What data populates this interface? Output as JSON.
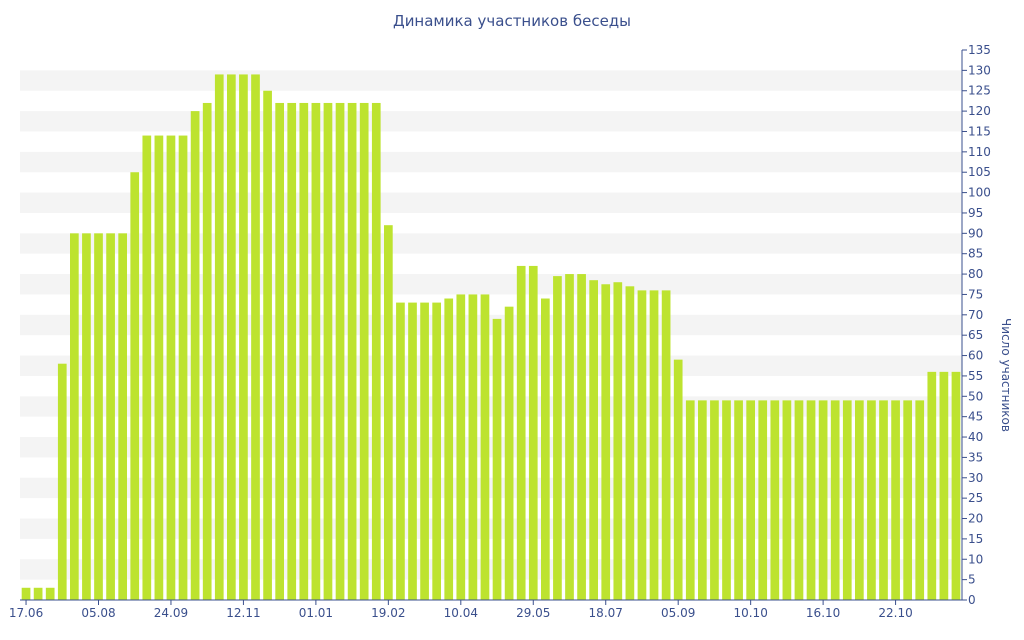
{
  "chart_data": {
    "type": "bar",
    "title": "Динамика участников беседы",
    "xlabel": "",
    "ylabel": "Число участников",
    "ylim": [
      0,
      135
    ],
    "y_ticks": [
      0,
      5,
      10,
      15,
      20,
      25,
      30,
      35,
      40,
      45,
      50,
      55,
      60,
      65,
      70,
      75,
      80,
      85,
      90,
      95,
      100,
      105,
      110,
      115,
      120,
      125,
      130,
      135
    ],
    "x_tick_labels": [
      "17.06",
      "05.08",
      "24.09",
      "12.11",
      "01.01",
      "19.02",
      "10.04",
      "29.05",
      "18.07",
      "05.09",
      "10.10",
      "16.10",
      "22.10"
    ],
    "x_tick_bar_index": [
      0,
      6,
      12,
      18,
      24,
      30,
      36,
      42,
      48,
      54,
      60,
      66,
      72
    ],
    "y_axis_position": "right",
    "grid": "alternating horizontal bands",
    "bar_color": "#bde32f",
    "values": [
      3,
      3,
      3,
      58,
      90,
      90,
      90,
      90,
      90,
      105,
      114,
      114,
      114,
      114,
      120,
      122,
      129,
      129,
      129,
      129,
      125,
      122,
      122,
      122,
      122,
      122,
      122,
      122,
      122,
      122,
      92,
      73,
      73,
      73,
      73,
      74,
      75,
      75,
      75,
      69,
      72,
      82,
      82,
      74,
      79.5,
      80,
      80,
      78.5,
      77.5,
      78,
      77,
      76,
      76,
      76,
      59,
      49,
      49,
      49,
      49,
      49,
      49,
      49,
      49,
      49,
      49,
      49,
      49,
      49,
      49,
      49,
      49,
      49,
      49,
      49,
      49,
      56,
      56,
      56
    ]
  }
}
